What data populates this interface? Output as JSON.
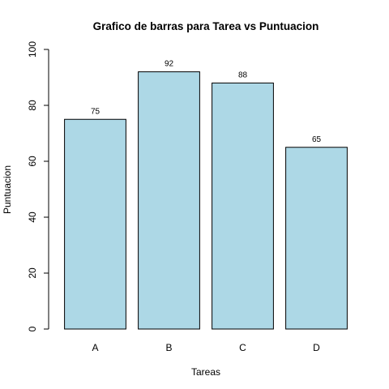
{
  "chart_data": {
    "type": "bar",
    "title": "Grafico de barras para Tarea vs Puntuacion",
    "xlabel": "Tareas",
    "ylabel": "Puntuacion",
    "categories": [
      "A",
      "B",
      "C",
      "D"
    ],
    "values": [
      75,
      92,
      88,
      65
    ],
    "data_labels": [
      "75",
      "92",
      "88",
      "65"
    ],
    "ylim": [
      0,
      100
    ],
    "yticks": [
      0,
      20,
      40,
      60,
      80,
      100
    ],
    "ytick_labels": [
      "0",
      "20",
      "40",
      "60",
      "80",
      "100"
    ],
    "bar_color": "#add8e6",
    "bar_border_color": "#000000",
    "grid": false,
    "legend": "none"
  }
}
